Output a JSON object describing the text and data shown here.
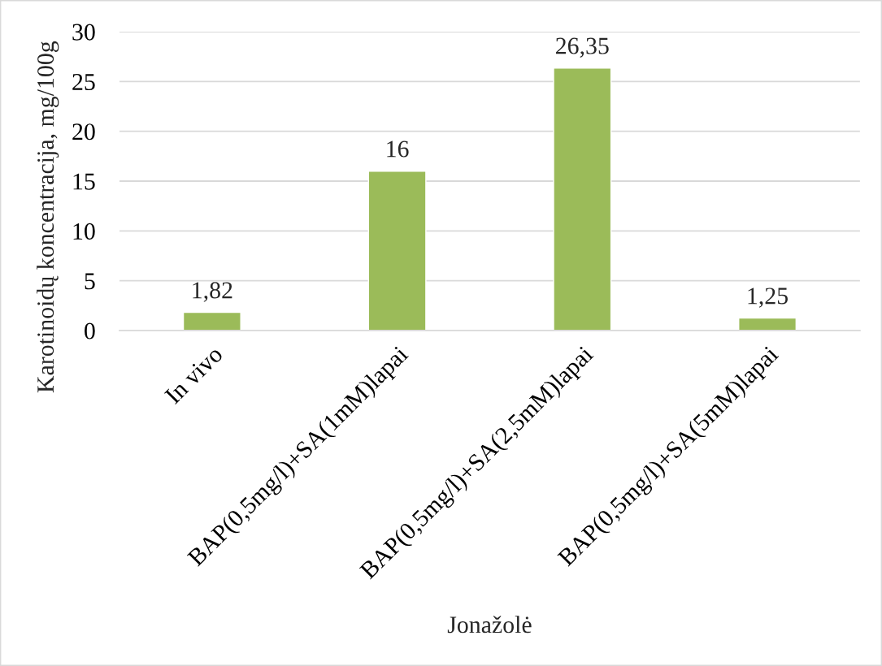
{
  "chart_data": {
    "type": "bar",
    "categories": [
      "In vivo",
      "BAP(0,5mg/l)+SA(1mM)lapai",
      "BAP(0,5mg/l)+SA(2,5mM)lapai",
      "BAP(0,5mg/l)+SA(5mM)lapai"
    ],
    "values": [
      1.82,
      16,
      26.35,
      1.25
    ],
    "color": "#9bbb59",
    "value_labels": [
      "1,82",
      "16",
      "26,35",
      "1,25"
    ],
    "xlabel": "Jonažolė",
    "ylabel": "Karotinoidų koncentracija, mg/100g",
    "ylim": [
      0,
      30
    ],
    "yticks": [
      0,
      5,
      10,
      15,
      20,
      25,
      30
    ],
    "grid": "y"
  }
}
